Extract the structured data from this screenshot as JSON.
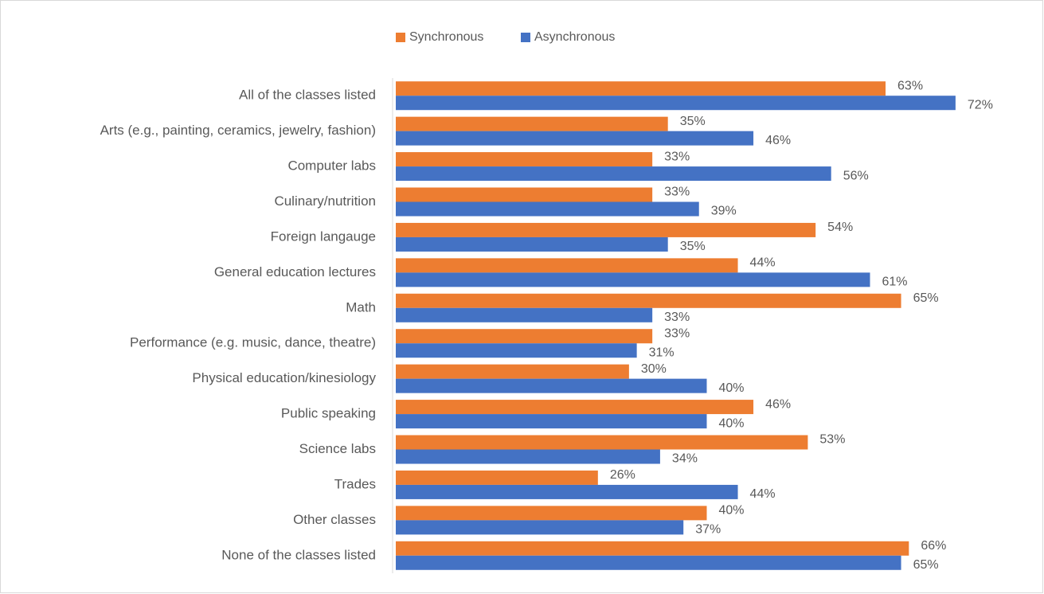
{
  "chart_data": {
    "type": "bar",
    "orientation": "horizontal",
    "categories": [
      "All of the classes listed",
      "Arts (e.g., painting, ceramics, jewelry, fashion)",
      "Computer labs",
      "Culinary/nutrition",
      "Foreign langauge",
      "General education lectures",
      "Math",
      "Performance (e.g. music, dance, theatre)",
      "Physical education/kinesiology",
      "Public speaking",
      "Science labs",
      "Trades",
      "Other classes",
      "None of the classes listed"
    ],
    "series": [
      {
        "name": "Synchronous",
        "color": "#ED7D31",
        "values": [
          63,
          35,
          33,
          33,
          54,
          44,
          65,
          33,
          30,
          46,
          53,
          26,
          40,
          66
        ],
        "value_labels": [
          "63%",
          "35%",
          "33%",
          "33%",
          "54%",
          "44%",
          "65%",
          "33%",
          "30%",
          "46%",
          "53%",
          "26%",
          "40%",
          "66%"
        ]
      },
      {
        "name": "Asynchronous",
        "color": "#4472C4",
        "values": [
          72,
          46,
          56,
          39,
          35,
          61,
          33,
          31,
          40,
          40,
          34,
          44,
          37,
          65
        ],
        "value_labels": [
          "72%",
          "46%",
          "56%",
          "39%",
          "35%",
          "61%",
          "33%",
          "31%",
          "40%",
          "40%",
          "34%",
          "44%",
          "37%",
          "65%"
        ]
      }
    ],
    "xlim": [
      0,
      80
    ],
    "legend": "top"
  }
}
